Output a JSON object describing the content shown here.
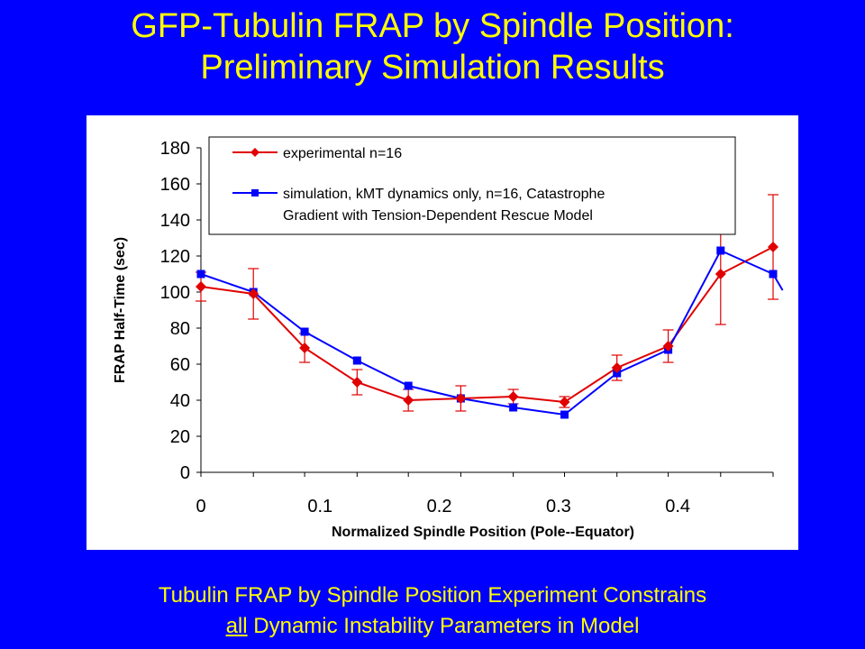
{
  "slide": {
    "title_line1": "GFP-Tubulin FRAP by Spindle Position:",
    "title_line2": "Preliminary Simulation Results",
    "caption_line1": "Tubulin FRAP by Spindle Position Experiment Constrains",
    "caption_line2_underlined": "all",
    "caption_line2_rest": " Dynamic Instability Parameters in Model"
  },
  "colors": {
    "background": "#0000fe",
    "title_text": "#ffff00",
    "experimental": "#e00000",
    "simulation": "#0000ff"
  },
  "chart_data": {
    "type": "line",
    "xlabel": "Normalized Spindle Position (Pole--Equator)",
    "ylabel": "FRAP Half-Time (sec)",
    "xlim": [
      0,
      0.48
    ],
    "ylim": [
      0,
      180
    ],
    "x_ticks": [
      "0",
      "0.1",
      "0.2",
      "0.3",
      "0.4"
    ],
    "x_tick_values": [
      0,
      0.1,
      0.2,
      0.3,
      0.4
    ],
    "y_ticks": [
      "0",
      "20",
      "40",
      "60",
      "80",
      "100",
      "120",
      "140",
      "160",
      "180"
    ],
    "y_tick_values": [
      0,
      20,
      40,
      60,
      80,
      100,
      120,
      140,
      160,
      180
    ],
    "grid": false,
    "legend_position": "top",
    "series": [
      {
        "name": "experimental n=16",
        "marker": "diamond",
        "color": "#e00000",
        "x": [
          0,
          0.044,
          0.087,
          0.131,
          0.174,
          0.218,
          0.262,
          0.305,
          0.349,
          0.392,
          0.436,
          0.48
        ],
        "y": [
          103,
          99,
          69,
          50,
          40,
          41,
          42,
          39,
          58,
          70,
          110,
          125
        ],
        "error": [
          8,
          14,
          8,
          7,
          6,
          7,
          4,
          3,
          7,
          9,
          28,
          29
        ]
      },
      {
        "name_line1": "simulation, kMT dynamics only, n=16, Catastrophe",
        "name_line2": "Gradient with Tension-Dependent Rescue Model",
        "marker": "square",
        "color": "#0000ff",
        "x": [
          0,
          0.044,
          0.087,
          0.131,
          0.174,
          0.218,
          0.262,
          0.305,
          0.349,
          0.392,
          0.436,
          0.48,
          0.488
        ],
        "y": [
          110,
          100,
          78,
          62,
          48,
          41,
          36,
          32,
          55,
          68,
          123,
          110,
          101
        ]
      }
    ]
  }
}
